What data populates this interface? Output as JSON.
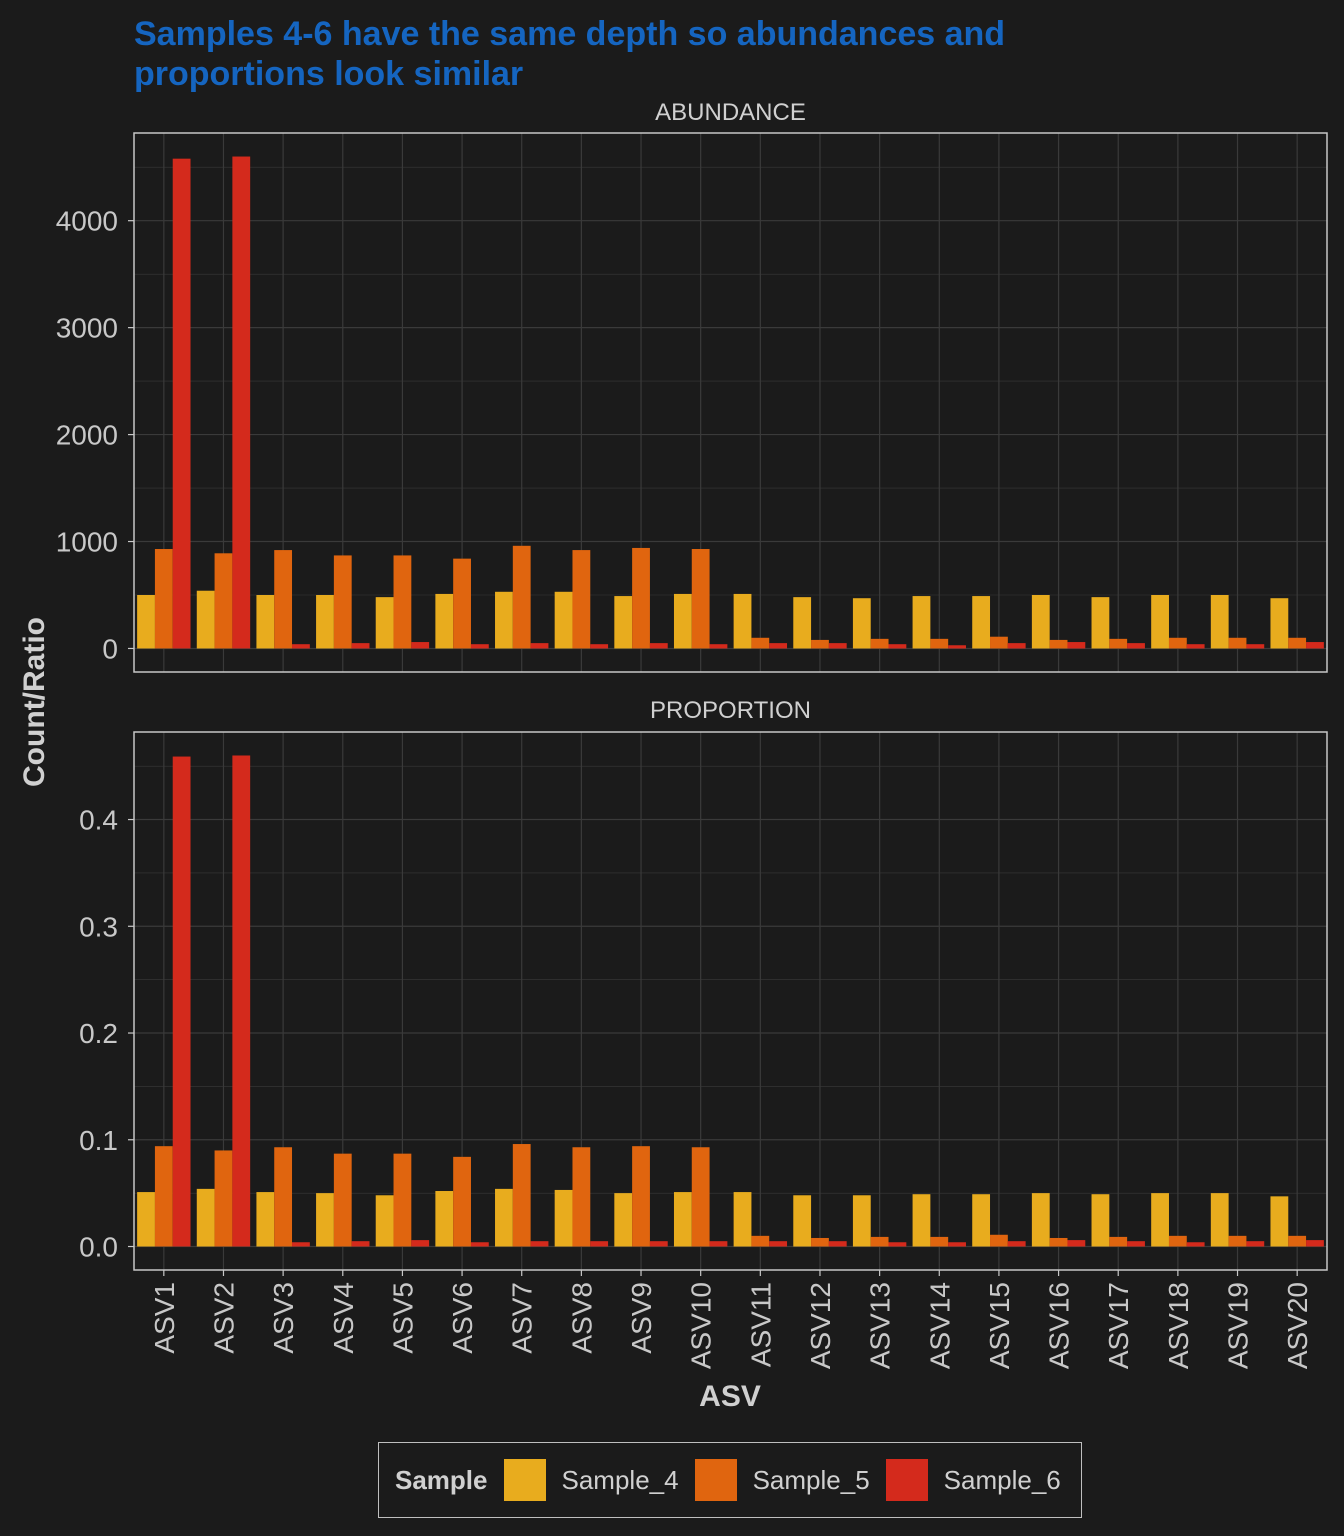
{
  "colors": {
    "background": "#1b1b1b",
    "grid": "#3a3a3a",
    "text": "#d0d0d0",
    "tick_text": "#c8c8c8",
    "panel_border": "#c8c8c8",
    "title": "#1565c0"
  },
  "chart_data": {
    "type": "bar",
    "title_lines": [
      "Samples 4-6 have the same depth so abundances and",
      "proportions look similar"
    ],
    "xlabel": "ASV",
    "ylabel": "Count/Ratio",
    "categories": [
      "ASV1",
      "ASV2",
      "ASV3",
      "ASV4",
      "ASV5",
      "ASV6",
      "ASV7",
      "ASV8",
      "ASV9",
      "ASV10",
      "ASV11",
      "ASV12",
      "ASV13",
      "ASV14",
      "ASV15",
      "ASV16",
      "ASV17",
      "ASV18",
      "ASV19",
      "ASV20"
    ],
    "legend": {
      "title": "Sample",
      "position": "bottom",
      "entries": [
        {
          "name": "Sample_4",
          "color": "#e8ac1e"
        },
        {
          "name": "Sample_5",
          "color": "#e0650f"
        },
        {
          "name": "Sample_6",
          "color": "#d42a1c"
        }
      ]
    },
    "grid": true,
    "panels": [
      {
        "strip_label": "ABUNDANCE",
        "ylim": [
          -220,
          4820
        ],
        "yticks": [
          0,
          1000,
          2000,
          3000,
          4000
        ],
        "ytick_labels": [
          "0",
          "1000",
          "2000",
          "3000",
          "4000"
        ],
        "series": [
          {
            "name": "Sample_4",
            "values": [
              500,
              540,
              500,
              500,
              480,
              510,
              530,
              530,
              490,
              510,
              510,
              480,
              470,
              490,
              490,
              500,
              480,
              500,
              500,
              470
            ]
          },
          {
            "name": "Sample_5",
            "values": [
              930,
              890,
              920,
              870,
              870,
              840,
              960,
              920,
              940,
              930,
              100,
              80,
              90,
              90,
              110,
              80,
              90,
              100,
              100,
              100
            ]
          },
          {
            "name": "Sample_6",
            "values": [
              4580,
              4600,
              40,
              50,
              60,
              40,
              50,
              40,
              50,
              40,
              50,
              50,
              40,
              30,
              50,
              60,
              50,
              40,
              40,
              60
            ]
          }
        ]
      },
      {
        "strip_label": "PROPORTION",
        "ylim": [
          -0.022,
          0.482
        ],
        "yticks": [
          0,
          0.1,
          0.2,
          0.3,
          0.4
        ],
        "ytick_labels": [
          "0.0",
          "0.1",
          "0.2",
          "0.3",
          "0.4"
        ],
        "series": [
          {
            "name": "Sample_4",
            "values": [
              0.051,
              0.054,
              0.051,
              0.05,
              0.048,
              0.052,
              0.054,
              0.053,
              0.05,
              0.051,
              0.051,
              0.048,
              0.048,
              0.049,
              0.049,
              0.05,
              0.049,
              0.05,
              0.05,
              0.047
            ]
          },
          {
            "name": "Sample_5",
            "values": [
              0.094,
              0.09,
              0.093,
              0.087,
              0.087,
              0.084,
              0.096,
              0.093,
              0.094,
              0.093,
              0.01,
              0.008,
              0.009,
              0.009,
              0.011,
              0.008,
              0.009,
              0.01,
              0.01,
              0.01
            ]
          },
          {
            "name": "Sample_6",
            "values": [
              0.459,
              0.46,
              0.004,
              0.005,
              0.006,
              0.004,
              0.005,
              0.005,
              0.005,
              0.005,
              0.005,
              0.005,
              0.004,
              0.004,
              0.005,
              0.006,
              0.005,
              0.004,
              0.005,
              0.006
            ]
          }
        ]
      }
    ]
  }
}
